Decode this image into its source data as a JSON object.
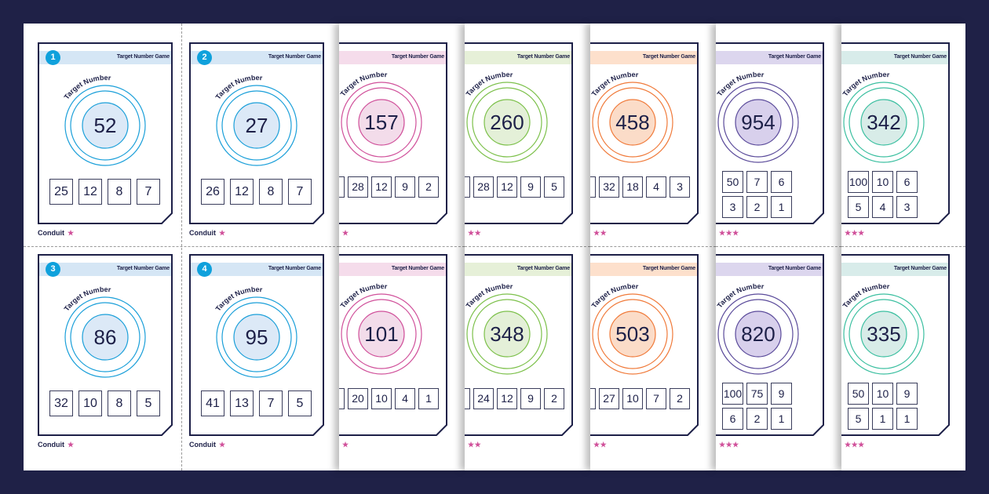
{
  "game_title": "Target Number Game",
  "target_label": "Target Number",
  "brand": "Conduit",
  "themes": {
    "blue": {
      "ring": "#1a9fd9",
      "fill": "#dce9f7",
      "band": "#d5e6f5"
    },
    "pink": {
      "ring": "#d0509a",
      "fill": "#f3dcea",
      "band": "#f5dceb"
    },
    "green": {
      "ring": "#7cc04a",
      "fill": "#e4f0d8",
      "band": "#e6f0d8"
    },
    "orange": {
      "ring": "#f07a3a",
      "fill": "#fbdcc8",
      "band": "#fde0cc"
    },
    "purple": {
      "ring": "#5a4a9a",
      "fill": "#d8d0ec",
      "band": "#dcd6ee"
    },
    "teal": {
      "ring": "#3bbfa0",
      "fill": "#d8ece8",
      "band": "#d8ecea"
    }
  },
  "pages": [
    {
      "theme": "blue",
      "stars": "★",
      "layout": "four",
      "cards": [
        {
          "badge": "1",
          "target": "52",
          "numbers": [
            "25",
            "12",
            "8",
            "7"
          ]
        },
        {
          "badge": "2",
          "target": "27",
          "numbers": [
            "26",
            "12",
            "8",
            "7"
          ]
        },
        {
          "badge": "3",
          "target": "86",
          "numbers": [
            "32",
            "10",
            "8",
            "5"
          ]
        },
        {
          "badge": "4",
          "target": "95",
          "numbers": [
            "41",
            "13",
            "7",
            "5"
          ]
        }
      ]
    },
    {
      "theme": "pink",
      "stars": "★",
      "layout": "five",
      "cards": [
        {
          "target": "157",
          "numbers": [
            null,
            "28",
            "12",
            "9",
            "2"
          ]
        },
        {
          "target": "101",
          "numbers": [
            null,
            "20",
            "10",
            "4",
            "1"
          ]
        }
      ]
    },
    {
      "theme": "green",
      "stars": "★★",
      "layout": "five",
      "cards": [
        {
          "target": "260",
          "numbers": [
            null,
            "28",
            "12",
            "9",
            "5"
          ]
        },
        {
          "target": "348",
          "numbers": [
            null,
            "24",
            "12",
            "9",
            "2"
          ]
        }
      ]
    },
    {
      "theme": "orange",
      "stars": "★★",
      "layout": "five",
      "cards": [
        {
          "target": "458",
          "numbers": [
            null,
            "32",
            "18",
            "4",
            "3"
          ]
        },
        {
          "target": "503",
          "numbers": [
            null,
            "27",
            "10",
            "7",
            "2"
          ]
        }
      ]
    },
    {
      "theme": "purple",
      "stars": "★★★",
      "layout": "six",
      "cards": [
        {
          "target": "954",
          "numbers": [
            "50",
            "7",
            "6",
            "3",
            "2",
            "1"
          ]
        },
        {
          "target": "820",
          "numbers": [
            "100",
            "75",
            "9",
            "6",
            "2",
            "1"
          ]
        }
      ]
    },
    {
      "theme": "teal",
      "stars": "★★★",
      "layout": "six",
      "cards": [
        {
          "target": "342",
          "numbers": [
            "100",
            "10",
            "6",
            "5",
            "4",
            "3"
          ]
        },
        {
          "target": "335",
          "numbers": [
            "50",
            "10",
            "9",
            "5",
            "1",
            "1"
          ]
        }
      ]
    }
  ]
}
